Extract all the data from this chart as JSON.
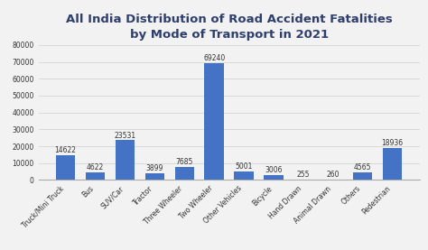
{
  "title": "All India Distribution of Road Accident Fatalities\nby Mode of Transport in 2021",
  "categories": [
    "Truck/Mini Truck",
    "Bus",
    "SUV/Car",
    "Tractor",
    "Three Wheeler",
    "Two Wheeler",
    "Other Vehicles",
    "Bicycle",
    "Hand Drawn",
    "Animal Drawn",
    "Others",
    "Pedestrian"
  ],
  "values": [
    14622,
    4622,
    23531,
    3899,
    7685,
    69240,
    5001,
    3006,
    255,
    260,
    4565,
    18936
  ],
  "bar_color": "#4472C4",
  "background_color": "#f2f2f2",
  "title_color": "#2e3f6e",
  "ylim": [
    0,
    80000
  ],
  "yticks": [
    0,
    10000,
    20000,
    30000,
    40000,
    50000,
    60000,
    70000,
    80000
  ],
  "title_fontsize": 9.5,
  "value_fontsize": 5.5,
  "tick_fontsize": 5.5,
  "grid_color": "#d9d9d9"
}
